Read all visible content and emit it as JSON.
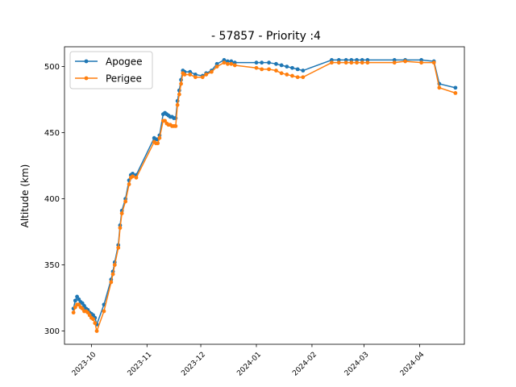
{
  "chart_data": {
    "type": "line",
    "title": "- 57857 - Priority :4",
    "xlabel": "",
    "ylabel": "Altitude (km)",
    "xlim": [
      "2023-09-16",
      "2024-04-26"
    ],
    "ylim": [
      290,
      515
    ],
    "x_ticks": [
      "2023-10",
      "2023-11",
      "2023-12",
      "2024-01",
      "2024-02",
      "2024-03",
      "2024-04"
    ],
    "y_ticks": [
      300,
      350,
      400,
      450,
      500
    ],
    "legend_position": "upper-left",
    "grid": false,
    "series": [
      {
        "name": "Apogee",
        "color": "#1f77b4",
        "marker": "circle",
        "points": [
          [
            "2023-09-21",
            317
          ],
          [
            "2023-09-22",
            323
          ],
          [
            "2023-09-23",
            326
          ],
          [
            "2023-09-24",
            324
          ],
          [
            "2023-09-25",
            322
          ],
          [
            "2023-09-26",
            321
          ],
          [
            "2023-09-27",
            319
          ],
          [
            "2023-09-28",
            317
          ],
          [
            "2023-09-29",
            316
          ],
          [
            "2023-09-30",
            314
          ],
          [
            "2023-10-01",
            313
          ],
          [
            "2023-10-02",
            312
          ],
          [
            "2023-10-03",
            310
          ],
          [
            "2023-10-04",
            305
          ],
          [
            "2023-10-08",
            320
          ],
          [
            "2023-10-12",
            339
          ],
          [
            "2023-10-13",
            345
          ],
          [
            "2023-10-14",
            352
          ],
          [
            "2023-10-16",
            365
          ],
          [
            "2023-10-17",
            380
          ],
          [
            "2023-10-18",
            391
          ],
          [
            "2023-10-20",
            400
          ],
          [
            "2023-10-22",
            414
          ],
          [
            "2023-10-23",
            418
          ],
          [
            "2023-10-24",
            419
          ],
          [
            "2023-10-26",
            418
          ],
          [
            "2023-11-05",
            446
          ],
          [
            "2023-11-06",
            445
          ],
          [
            "2023-11-07",
            445
          ],
          [
            "2023-11-08",
            448
          ],
          [
            "2023-11-10",
            464
          ],
          [
            "2023-11-11",
            465
          ],
          [
            "2023-11-12",
            464
          ],
          [
            "2023-11-13",
            463
          ],
          [
            "2023-11-14",
            462
          ],
          [
            "2023-11-15",
            462
          ],
          [
            "2023-11-16",
            461
          ],
          [
            "2023-11-17",
            461
          ],
          [
            "2023-11-18",
            474
          ],
          [
            "2023-11-19",
            482
          ],
          [
            "2023-11-20",
            490
          ],
          [
            "2023-11-21",
            497
          ],
          [
            "2023-11-22",
            496
          ],
          [
            "2023-11-25",
            496
          ],
          [
            "2023-11-28",
            494
          ],
          [
            "2023-12-02",
            493
          ],
          [
            "2023-12-04",
            495
          ],
          [
            "2023-12-07",
            497
          ],
          [
            "2023-12-10",
            502
          ],
          [
            "2023-12-14",
            505
          ],
          [
            "2023-12-16",
            504
          ],
          [
            "2023-12-18",
            504
          ],
          [
            "2023-12-20",
            503
          ],
          [
            "2024-01-01",
            503
          ],
          [
            "2024-01-04",
            503
          ],
          [
            "2024-01-08",
            503
          ],
          [
            "2024-01-12",
            502
          ],
          [
            "2024-01-15",
            501
          ],
          [
            "2024-01-18",
            500
          ],
          [
            "2024-01-21",
            499
          ],
          [
            "2024-01-24",
            498
          ],
          [
            "2024-01-27",
            497
          ],
          [
            "2024-02-12",
            505
          ],
          [
            "2024-02-16",
            505
          ],
          [
            "2024-02-20",
            505
          ],
          [
            "2024-02-23",
            505
          ],
          [
            "2024-02-26",
            505
          ],
          [
            "2024-02-29",
            505
          ],
          [
            "2024-03-03",
            505
          ],
          [
            "2024-03-18",
            505
          ],
          [
            "2024-03-24",
            505
          ],
          [
            "2024-04-02",
            505
          ],
          [
            "2024-04-09",
            504
          ],
          [
            "2024-04-12",
            487
          ],
          [
            "2024-04-21",
            484
          ]
        ]
      },
      {
        "name": "Perigee",
        "color": "#ff7f0e",
        "marker": "circle",
        "points": [
          [
            "2023-09-21",
            314
          ],
          [
            "2023-09-22",
            318
          ],
          [
            "2023-09-23",
            320
          ],
          [
            "2023-09-24",
            320
          ],
          [
            "2023-09-25",
            318
          ],
          [
            "2023-09-26",
            317
          ],
          [
            "2023-09-27",
            315
          ],
          [
            "2023-09-28",
            315
          ],
          [
            "2023-09-29",
            314
          ],
          [
            "2023-09-30",
            312
          ],
          [
            "2023-10-01",
            310
          ],
          [
            "2023-10-02",
            309
          ],
          [
            "2023-10-03",
            306
          ],
          [
            "2023-10-04",
            300
          ],
          [
            "2023-10-08",
            315
          ],
          [
            "2023-10-12",
            337
          ],
          [
            "2023-10-13",
            343
          ],
          [
            "2023-10-14",
            350
          ],
          [
            "2023-10-16",
            363
          ],
          [
            "2023-10-17",
            378
          ],
          [
            "2023-10-18",
            389
          ],
          [
            "2023-10-20",
            398
          ],
          [
            "2023-10-22",
            411
          ],
          [
            "2023-10-23",
            416
          ],
          [
            "2023-10-24",
            417
          ],
          [
            "2023-10-26",
            416
          ],
          [
            "2023-11-05",
            443
          ],
          [
            "2023-11-06",
            442
          ],
          [
            "2023-11-07",
            442
          ],
          [
            "2023-11-08",
            446
          ],
          [
            "2023-11-10",
            459
          ],
          [
            "2023-11-11",
            459
          ],
          [
            "2023-11-12",
            457
          ],
          [
            "2023-11-13",
            456
          ],
          [
            "2023-11-14",
            456
          ],
          [
            "2023-11-15",
            455
          ],
          [
            "2023-11-16",
            455
          ],
          [
            "2023-11-17",
            455
          ],
          [
            "2023-11-18",
            471
          ],
          [
            "2023-11-19",
            479
          ],
          [
            "2023-11-20",
            487
          ],
          [
            "2023-11-21",
            495
          ],
          [
            "2023-11-22",
            494
          ],
          [
            "2023-11-25",
            494
          ],
          [
            "2023-11-28",
            492
          ],
          [
            "2023-12-02",
            492
          ],
          [
            "2023-12-04",
            494
          ],
          [
            "2023-12-07",
            496
          ],
          [
            "2023-12-10",
            500
          ],
          [
            "2023-12-14",
            503
          ],
          [
            "2023-12-16",
            502
          ],
          [
            "2023-12-18",
            502
          ],
          [
            "2023-12-20",
            501
          ],
          [
            "2024-01-01",
            499
          ],
          [
            "2024-01-04",
            498
          ],
          [
            "2024-01-08",
            498
          ],
          [
            "2024-01-12",
            497
          ],
          [
            "2024-01-15",
            495
          ],
          [
            "2024-01-18",
            494
          ],
          [
            "2024-01-21",
            493
          ],
          [
            "2024-01-24",
            492
          ],
          [
            "2024-01-27",
            492
          ],
          [
            "2024-02-12",
            503
          ],
          [
            "2024-02-16",
            503
          ],
          [
            "2024-02-20",
            503
          ],
          [
            "2024-02-23",
            503
          ],
          [
            "2024-02-26",
            503
          ],
          [
            "2024-02-29",
            503
          ],
          [
            "2024-03-03",
            503
          ],
          [
            "2024-03-18",
            503
          ],
          [
            "2024-03-24",
            504
          ],
          [
            "2024-04-02",
            503
          ],
          [
            "2024-04-09",
            503
          ],
          [
            "2024-04-12",
            484
          ],
          [
            "2024-04-21",
            480
          ]
        ]
      }
    ]
  }
}
